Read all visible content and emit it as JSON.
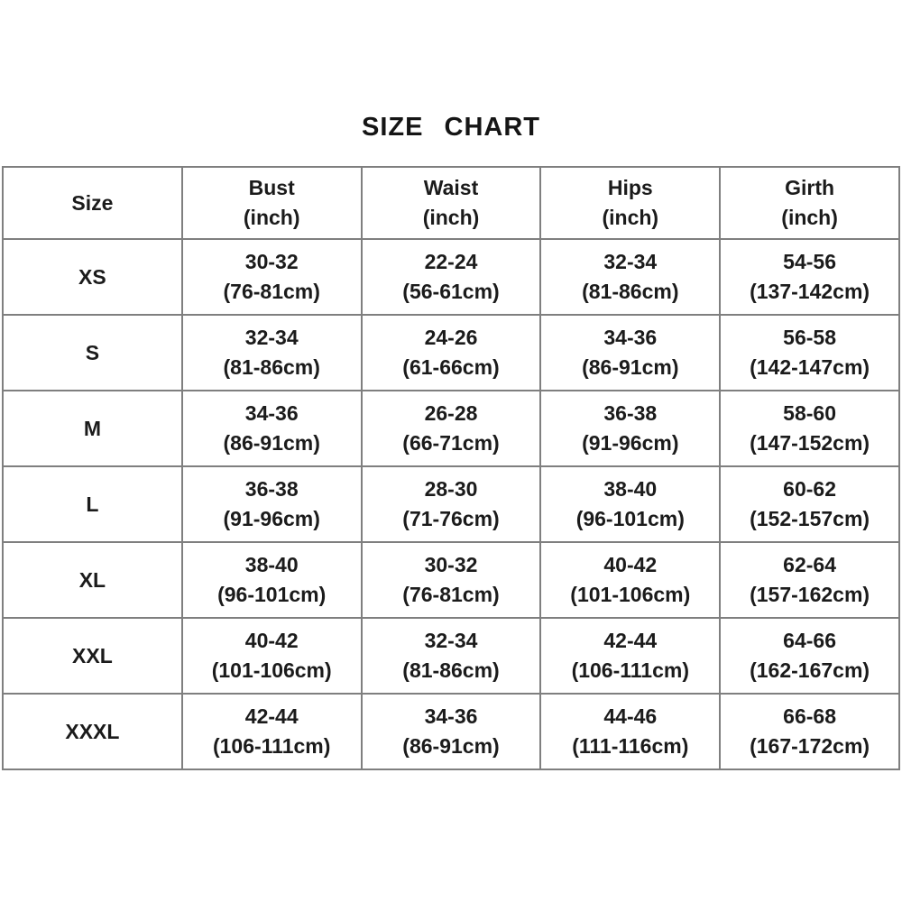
{
  "page": {
    "background": "#ffffff",
    "border_color": "#7f7f7f",
    "text_color": "#1b1b1b"
  },
  "chart_data": {
    "type": "table",
    "title": "SIZE CHART",
    "columns": [
      {
        "label": "Size",
        "unit": ""
      },
      {
        "label": "Bust",
        "unit": "(inch)"
      },
      {
        "label": "Waist",
        "unit": "(inch)"
      },
      {
        "label": "Hips",
        "unit": "(inch)"
      },
      {
        "label": "Girth",
        "unit": "(inch)"
      }
    ],
    "rows": [
      {
        "size": "XS",
        "bust_inch": "30-32",
        "bust_cm": "(76-81cm)",
        "waist_inch": "22-24",
        "waist_cm": "(56-61cm)",
        "hips_inch": "32-34",
        "hips_cm": "(81-86cm)",
        "girth_inch": "54-56",
        "girth_cm": "(137-142cm)"
      },
      {
        "size": "S",
        "bust_inch": "32-34",
        "bust_cm": "(81-86cm)",
        "waist_inch": "24-26",
        "waist_cm": "(61-66cm)",
        "hips_inch": "34-36",
        "hips_cm": "(86-91cm)",
        "girth_inch": "56-58",
        "girth_cm": "(142-147cm)"
      },
      {
        "size": "M",
        "bust_inch": "34-36",
        "bust_cm": "(86-91cm)",
        "waist_inch": "26-28",
        "waist_cm": "(66-71cm)",
        "hips_inch": "36-38",
        "hips_cm": "(91-96cm)",
        "girth_inch": "58-60",
        "girth_cm": "(147-152cm)"
      },
      {
        "size": "L",
        "bust_inch": "36-38",
        "bust_cm": "(91-96cm)",
        "waist_inch": "28-30",
        "waist_cm": "(71-76cm)",
        "hips_inch": "38-40",
        "hips_cm": "(96-101cm)",
        "girth_inch": "60-62",
        "girth_cm": "(152-157cm)"
      },
      {
        "size": "XL",
        "bust_inch": "38-40",
        "bust_cm": "(96-101cm)",
        "waist_inch": "30-32",
        "waist_cm": "(76-81cm)",
        "hips_inch": "40-42",
        "hips_cm": "(101-106cm)",
        "girth_inch": "62-64",
        "girth_cm": "(157-162cm)"
      },
      {
        "size": "XXL",
        "bust_inch": "40-42",
        "bust_cm": "(101-106cm)",
        "waist_inch": "32-34",
        "waist_cm": "(81-86cm)",
        "hips_inch": "42-44",
        "hips_cm": "(106-111cm)",
        "girth_inch": "64-66",
        "girth_cm": "(162-167cm)"
      },
      {
        "size": "XXXL",
        "bust_inch": "42-44",
        "bust_cm": "(106-111cm)",
        "waist_inch": "34-36",
        "waist_cm": "(86-91cm)",
        "hips_inch": "44-46",
        "hips_cm": "(111-116cm)",
        "girth_inch": "66-68",
        "girth_cm": "(167-172cm)"
      }
    ]
  }
}
